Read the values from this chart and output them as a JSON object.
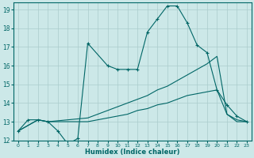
{
  "xlabel": "Humidex (Indice chaleur)",
  "bg_color": "#cce8e8",
  "grid_color": "#aacccc",
  "line_color": "#006666",
  "xlim": [
    -0.5,
    23.5
  ],
  "ylim": [
    12,
    19.4
  ],
  "yticks": [
    12,
    13,
    14,
    15,
    16,
    17,
    18,
    19
  ],
  "xticks": [
    0,
    1,
    2,
    3,
    4,
    5,
    6,
    7,
    8,
    9,
    10,
    11,
    12,
    13,
    14,
    15,
    16,
    17,
    18,
    19,
    20,
    21,
    22,
    23
  ],
  "series": [
    {
      "x": [
        0,
        1,
        2,
        3,
        4,
        5,
        6,
        7,
        9,
        10,
        11,
        12,
        13,
        14,
        15,
        16,
        17,
        18,
        19,
        20,
        21,
        22,
        23
      ],
      "y": [
        12.5,
        13.1,
        13.1,
        13.0,
        12.5,
        11.8,
        12.1,
        17.2,
        16.0,
        15.8,
        15.8,
        15.8,
        17.8,
        18.5,
        19.2,
        19.2,
        18.3,
        17.1,
        16.7,
        14.7,
        13.9,
        13.3,
        13.0
      ],
      "marker": true
    },
    {
      "x": [
        0,
        2,
        3,
        7,
        10,
        11,
        12,
        13,
        14,
        15,
        16,
        17,
        18,
        19,
        20,
        21,
        22,
        23
      ],
      "y": [
        12.5,
        13.1,
        13.0,
        13.2,
        13.8,
        14.0,
        14.2,
        14.4,
        14.7,
        14.9,
        15.2,
        15.5,
        15.8,
        16.1,
        16.5,
        13.4,
        13.1,
        13.0
      ],
      "marker": false
    },
    {
      "x": [
        0,
        2,
        3,
        7,
        10,
        11,
        12,
        13,
        14,
        15,
        16,
        17,
        18,
        19,
        20,
        21,
        22,
        23
      ],
      "y": [
        12.5,
        13.1,
        13.0,
        13.0,
        13.3,
        13.4,
        13.6,
        13.7,
        13.9,
        14.0,
        14.2,
        14.4,
        14.5,
        14.6,
        14.7,
        13.4,
        13.0,
        13.0
      ],
      "marker": false
    }
  ]
}
